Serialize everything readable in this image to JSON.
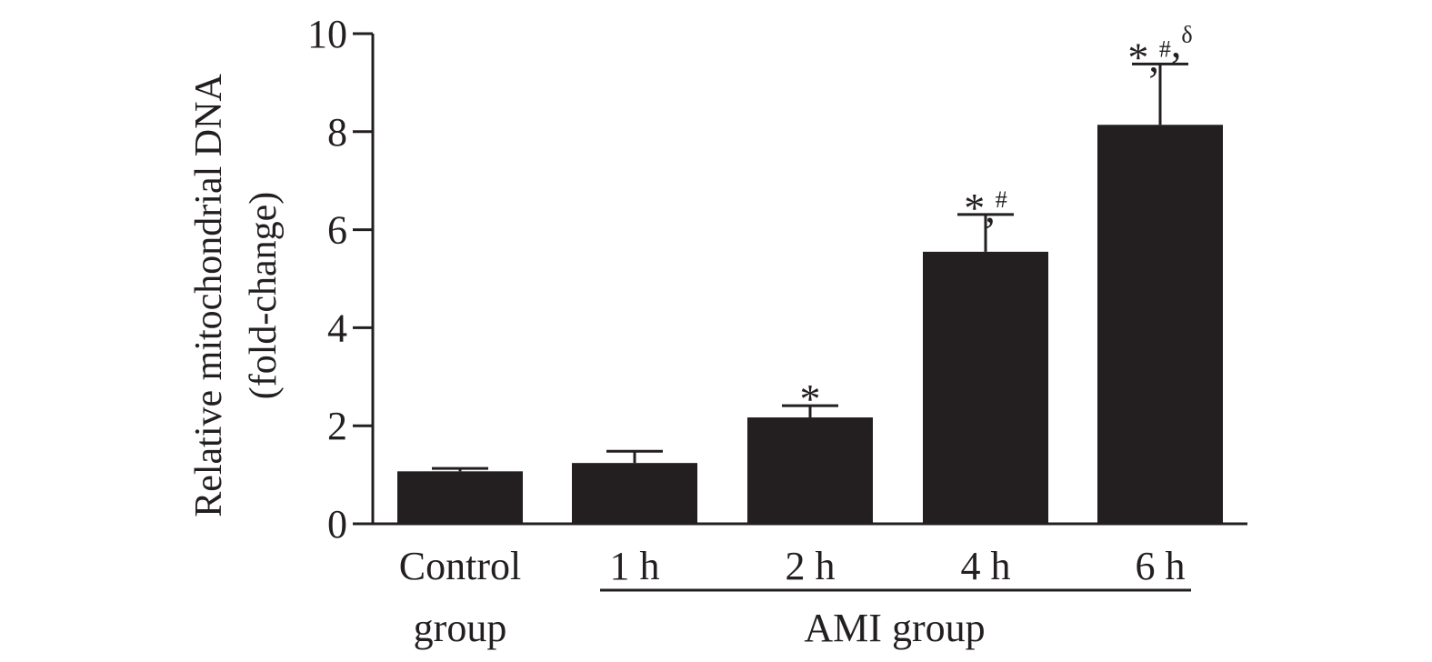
{
  "chart_data": {
    "type": "bar",
    "ylabel": [
      "Relative mitochondrial DNA",
      "(fold-change)"
    ],
    "ylim": [
      0,
      10
    ],
    "yticks": [
      0,
      2,
      4,
      6,
      8,
      10
    ],
    "categories": [
      [
        "Control",
        "group"
      ],
      [
        "1 h"
      ],
      [
        "2 h"
      ],
      [
        "4 h"
      ],
      [
        "6 h"
      ]
    ],
    "values": [
      1.07,
      1.24,
      2.17,
      5.55,
      8.14
    ],
    "error_upper": [
      0.06,
      0.24,
      0.24,
      0.76,
      1.24
    ],
    "annotations": [
      null,
      null,
      {
        "mark": "*",
        "sup": []
      },
      {
        "mark": "*",
        "sup": [
          "#"
        ]
      },
      {
        "mark": "*",
        "sup": [
          "#",
          "δ"
        ]
      }
    ],
    "group_bracket": {
      "label": "AMI group",
      "from_category": 1,
      "to_category": 4
    },
    "bar_color": "#231f20"
  }
}
